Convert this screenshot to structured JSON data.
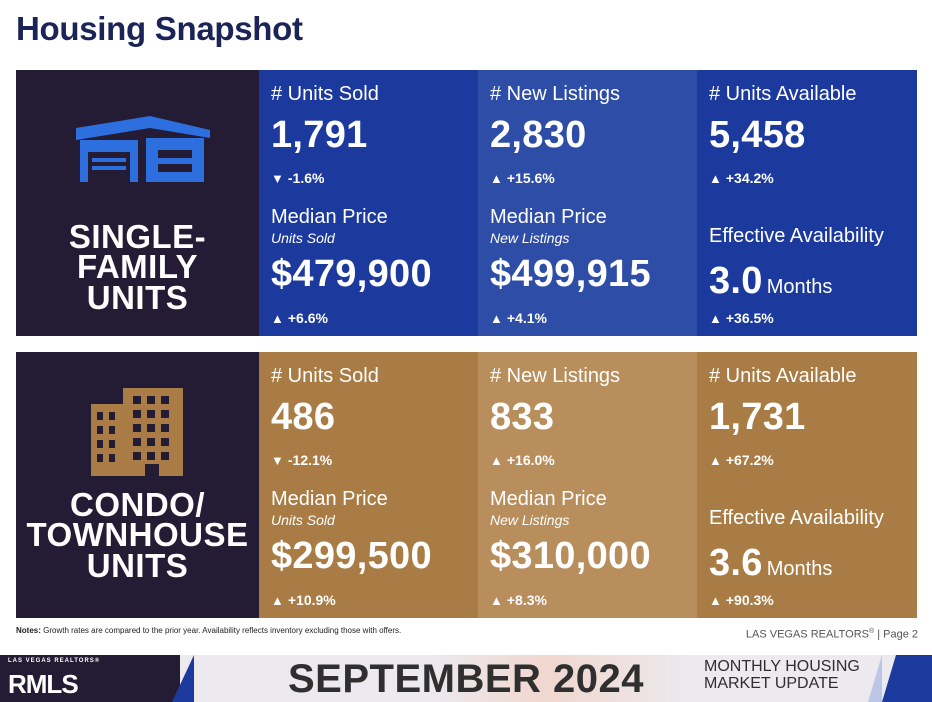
{
  "page": {
    "title": "Housing Snapshot"
  },
  "colors": {
    "single_family": "#1c3a9e",
    "condo": "#a97c45",
    "label_bg": "#241c34"
  },
  "single_family": {
    "label_lines": [
      "SINGLE-",
      "FAMILY",
      "UNITS"
    ],
    "icon": "house-icon",
    "units_sold": {
      "heading": "# Units Sold",
      "value": "1,791",
      "direction": "down",
      "change": "-1.6%"
    },
    "new_listings": {
      "heading": "# New Listings",
      "value": "2,830",
      "direction": "up",
      "change": "+15.6%"
    },
    "units_available": {
      "heading": "# Units Available",
      "value": "5,458",
      "direction": "up",
      "change": "+34.2%"
    },
    "median_price_sold": {
      "heading": "Median Price",
      "sub": "Units Sold",
      "value": "$479,900",
      "direction": "up",
      "change": "+6.6%"
    },
    "median_price_listings": {
      "heading": "Median Price",
      "sub": "New Listings",
      "value": "$499,915",
      "direction": "up",
      "change": "+4.1%"
    },
    "effective_availability": {
      "heading": "Effective Availability",
      "value": "3.0",
      "unit": "Months",
      "direction": "up",
      "change": "+36.5%"
    }
  },
  "condo": {
    "label_lines": [
      "CONDO/",
      "TOWNHOUSE",
      "UNITS"
    ],
    "icon": "building-icon",
    "units_sold": {
      "heading": "# Units Sold",
      "value": "486",
      "direction": "down",
      "change": "-12.1%"
    },
    "new_listings": {
      "heading": "# New Listings",
      "value": "833",
      "direction": "up",
      "change": "+16.0%"
    },
    "units_available": {
      "heading": "# Units Available",
      "value": "1,731",
      "direction": "up",
      "change": "+67.2%"
    },
    "median_price_sold": {
      "heading": "Median Price",
      "sub": "Units Sold",
      "value": "$299,500",
      "direction": "up",
      "change": "+10.9%"
    },
    "median_price_listings": {
      "heading": "Median Price",
      "sub": "New Listings",
      "value": "$310,000",
      "direction": "up",
      "change": "+8.3%"
    },
    "effective_availability": {
      "heading": "Effective Availability",
      "value": "3.6",
      "unit": "Months",
      "direction": "up",
      "change": "+90.3%"
    }
  },
  "notes": {
    "label": "Notes:",
    "text": " Growth rates are compared to the prior year. Availability reflects inventory excluding those with offers."
  },
  "footer": {
    "org": "LAS VEGAS REALTORS",
    "reg": "®",
    "page": " | Page 2",
    "brand_small": "LAS VEGAS REALTORS®",
    "brand_mls": "RMLS",
    "month": "SEPTEMBER 2024",
    "update_line1": "MONTHLY HOUSING",
    "update_line2": "MARKET UPDATE"
  }
}
